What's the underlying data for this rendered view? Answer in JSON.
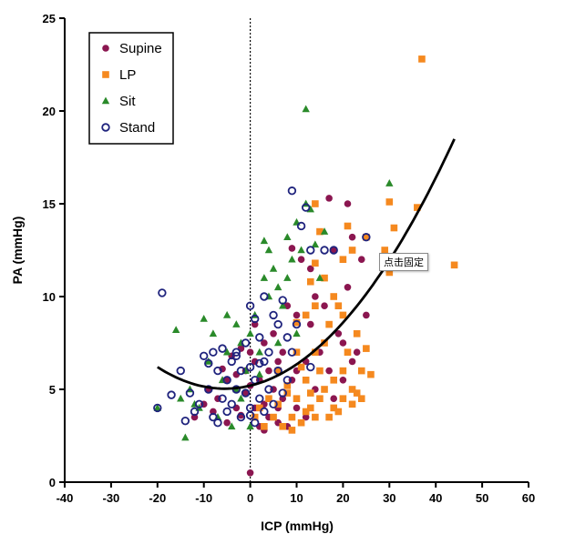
{
  "tooltip": {
    "text": "点击固定"
  },
  "chart_data": {
    "type": "scatter",
    "xlabel": "ICP (mmHg)",
    "ylabel": "PA (mmHg)",
    "xlim": [
      -40,
      60
    ],
    "ylim": [
      0,
      25
    ],
    "x_ticks": [
      -40,
      -30,
      -20,
      -10,
      0,
      10,
      20,
      30,
      40,
      50,
      60
    ],
    "y_ticks": [
      0,
      5,
      10,
      15,
      20,
      25
    ],
    "grid": false,
    "legend_position": "top-left",
    "reference_line": {
      "x": 0,
      "style": "dotted"
    },
    "fit_curve": {
      "type": "quadratic",
      "coefficients": [
        5.2,
        0.06,
        0.0055
      ],
      "x_range": [
        -20,
        44
      ]
    },
    "series": [
      {
        "name": "Supine",
        "marker": "filled-circle",
        "color": "#8B1650",
        "points": [
          [
            -12,
            3.5
          ],
          [
            -10,
            4.2
          ],
          [
            -9,
            5.0
          ],
          [
            -8,
            3.8
          ],
          [
            -7,
            4.5
          ],
          [
            -6,
            6.1
          ],
          [
            -5,
            5.5
          ],
          [
            -5,
            3.2
          ],
          [
            -4,
            6.8
          ],
          [
            -3,
            4.0
          ],
          [
            -3,
            5.8
          ],
          [
            -2,
            7.2
          ],
          [
            -2,
            3.6
          ],
          [
            -1,
            6.0
          ],
          [
            -1,
            4.8
          ],
          [
            0,
            0.5
          ],
          [
            0,
            7.0
          ],
          [
            0,
            5.2
          ],
          [
            1,
            6.5
          ],
          [
            1,
            4.0
          ],
          [
            1,
            8.5
          ],
          [
            2,
            3.0
          ],
          [
            2,
            5.5
          ],
          [
            3,
            7.5
          ],
          [
            3,
            4.2
          ],
          [
            4,
            6.0
          ],
          [
            4,
            3.5
          ],
          [
            5,
            8.0
          ],
          [
            5,
            5.0
          ],
          [
            6,
            3.2
          ],
          [
            6,
            6.5
          ],
          [
            7,
            7.0
          ],
          [
            7,
            4.5
          ],
          [
            8,
            9.5
          ],
          [
            8,
            3.0
          ],
          [
            9,
            5.5
          ],
          [
            10,
            6.0
          ],
          [
            10,
            9.0
          ],
          [
            10,
            4.0
          ],
          [
            11,
            12.0
          ],
          [
            12,
            6.5
          ],
          [
            12,
            3.5
          ],
          [
            13,
            8.5
          ],
          [
            14,
            10.0
          ],
          [
            14,
            5.0
          ],
          [
            15,
            7.0
          ],
          [
            16,
            9.5
          ],
          [
            17,
            6.0
          ],
          [
            18,
            12.5
          ],
          [
            18,
            4.5
          ],
          [
            19,
            8.0
          ],
          [
            20,
            7.5
          ],
          [
            20,
            5.5
          ],
          [
            21,
            10.5
          ],
          [
            22,
            6.5
          ],
          [
            22,
            13.2
          ],
          [
            23,
            7.0
          ],
          [
            24,
            12.0
          ],
          [
            25,
            9.0
          ],
          [
            17,
            15.3
          ],
          [
            21,
            15.0
          ],
          [
            9,
            12.6
          ],
          [
            13,
            11.5
          ],
          [
            3,
            2.8
          ],
          [
            6,
            4.0
          ]
        ]
      },
      {
        "name": "LP",
        "marker": "filled-square",
        "color": "#F5891F",
        "points": [
          [
            37,
            22.8
          ],
          [
            44,
            11.7
          ],
          [
            36,
            14.8
          ],
          [
            30,
            15.1
          ],
          [
            31,
            13.7
          ],
          [
            30,
            11.3
          ],
          [
            29,
            12.5
          ],
          [
            25,
            13.2
          ],
          [
            22,
            12.5
          ],
          [
            21,
            13.8
          ],
          [
            20,
            12.0
          ],
          [
            14,
            15.0
          ],
          [
            15,
            13.5
          ],
          [
            14,
            11.8
          ],
          [
            14,
            9.5
          ],
          [
            13,
            10.8
          ],
          [
            12,
            9.0
          ],
          [
            10,
            8.6
          ],
          [
            10,
            7.0
          ],
          [
            11,
            6.2
          ],
          [
            12,
            5.5
          ],
          [
            13,
            4.0
          ],
          [
            14,
            3.5
          ],
          [
            15,
            6.0
          ],
          [
            16,
            7.5
          ],
          [
            16,
            5.0
          ],
          [
            17,
            8.5
          ],
          [
            18,
            5.5
          ],
          [
            18,
            4.0
          ],
          [
            19,
            9.5
          ],
          [
            20,
            6.0
          ],
          [
            20,
            4.5
          ],
          [
            21,
            7.0
          ],
          [
            22,
            5.0
          ],
          [
            23,
            8.0
          ],
          [
            24,
            6.0
          ],
          [
            25,
            7.2
          ],
          [
            26,
            5.8
          ],
          [
            24,
            4.5
          ],
          [
            23,
            4.8
          ],
          [
            22,
            4.2
          ],
          [
            19,
            3.8
          ],
          [
            17,
            3.5
          ],
          [
            15,
            4.5
          ],
          [
            13,
            4.8
          ],
          [
            12,
            3.8
          ],
          [
            10,
            4.5
          ],
          [
            9,
            3.5
          ],
          [
            8,
            4.8
          ],
          [
            7,
            3.0
          ],
          [
            6,
            4.2
          ],
          [
            5,
            3.5
          ],
          [
            4,
            4.5
          ],
          [
            3,
            3.0
          ],
          [
            2,
            4.0
          ],
          [
            1,
            3.5
          ],
          [
            9,
            2.8
          ],
          [
            11,
            3.2
          ],
          [
            8,
            5.2
          ],
          [
            6,
            6.0
          ],
          [
            16,
            11.0
          ],
          [
            18,
            10.0
          ],
          [
            14,
            7.0
          ],
          [
            20,
            9.0
          ]
        ]
      },
      {
        "name": "Sit",
        "marker": "filled-triangle",
        "color": "#2A8A2A",
        "points": [
          [
            -20,
            4.0
          ],
          [
            -16,
            8.2
          ],
          [
            -15,
            4.5
          ],
          [
            -14,
            2.4
          ],
          [
            -13,
            5.0
          ],
          [
            -12,
            4.2
          ],
          [
            -10,
            8.8
          ],
          [
            -9,
            6.5
          ],
          [
            -8,
            8.0
          ],
          [
            -7,
            3.5
          ],
          [
            -6,
            5.5
          ],
          [
            -5,
            7.0
          ],
          [
            -5,
            9.0
          ],
          [
            -4,
            3.0
          ],
          [
            -3,
            8.5
          ],
          [
            -3,
            5.0
          ],
          [
            -2,
            7.5
          ],
          [
            -1,
            6.0
          ],
          [
            0,
            8.0
          ],
          [
            1,
            9.0
          ],
          [
            2,
            7.0
          ],
          [
            3,
            11.0
          ],
          [
            4,
            10.0
          ],
          [
            4,
            12.5
          ],
          [
            5,
            11.5
          ],
          [
            6,
            10.5
          ],
          [
            7,
            9.5
          ],
          [
            8,
            13.2
          ],
          [
            8,
            11.0
          ],
          [
            9,
            12.0
          ],
          [
            10,
            14.0
          ],
          [
            11,
            12.5
          ],
          [
            12,
            15.0
          ],
          [
            12,
            20.1
          ],
          [
            13,
            14.7
          ],
          [
            14,
            12.8
          ],
          [
            15,
            11.0
          ],
          [
            16,
            13.5
          ],
          [
            30,
            16.1
          ],
          [
            3,
            13.0
          ],
          [
            -11,
            4.0
          ],
          [
            -2,
            4.5
          ],
          [
            0,
            3.0
          ],
          [
            2,
            5.8
          ],
          [
            10,
            8.0
          ],
          [
            6,
            7.5
          ]
        ]
      },
      {
        "name": "Stand",
        "marker": "open-circle",
        "color": "#1F237D",
        "points": [
          [
            -19,
            10.2
          ],
          [
            -20,
            4.0
          ],
          [
            -15,
            6.0
          ],
          [
            -14,
            3.3
          ],
          [
            -13,
            4.8
          ],
          [
            -12,
            3.8
          ],
          [
            -11,
            4.2
          ],
          [
            -10,
            6.8
          ],
          [
            -9,
            5.0
          ],
          [
            -8,
            7.0
          ],
          [
            -8,
            3.5
          ],
          [
            -7,
            6.0
          ],
          [
            -6,
            4.5
          ],
          [
            -6,
            7.2
          ],
          [
            -5,
            5.5
          ],
          [
            -5,
            3.8
          ],
          [
            -4,
            6.5
          ],
          [
            -4,
            4.2
          ],
          [
            -3,
            7.0
          ],
          [
            -3,
            5.0
          ],
          [
            -2,
            6.0
          ],
          [
            -2,
            3.5
          ],
          [
            -1,
            4.8
          ],
          [
            -1,
            7.5
          ],
          [
            0,
            9.5
          ],
          [
            0,
            6.2
          ],
          [
            0,
            4.0
          ],
          [
            1,
            8.8
          ],
          [
            1,
            5.5
          ],
          [
            1,
            3.2
          ],
          [
            2,
            7.8
          ],
          [
            2,
            4.5
          ],
          [
            3,
            10.0
          ],
          [
            3,
            6.5
          ],
          [
            3,
            3.8
          ],
          [
            4,
            7.0
          ],
          [
            4,
            5.0
          ],
          [
            5,
            9.0
          ],
          [
            5,
            4.2
          ],
          [
            6,
            8.5
          ],
          [
            6,
            6.0
          ],
          [
            7,
            9.8
          ],
          [
            7,
            4.8
          ],
          [
            8,
            7.8
          ],
          [
            8,
            5.5
          ],
          [
            9,
            15.7
          ],
          [
            9,
            7.0
          ],
          [
            10,
            8.5
          ],
          [
            11,
            13.8
          ],
          [
            12,
            14.8
          ],
          [
            13,
            12.5
          ],
          [
            13,
            6.2
          ],
          [
            16,
            12.5
          ],
          [
            18,
            12.5
          ],
          [
            25,
            13.2
          ],
          [
            -17,
            4.7
          ],
          [
            -9,
            6.4
          ],
          [
            -7,
            3.2
          ],
          [
            -3,
            6.8
          ],
          [
            0,
            3.6
          ],
          [
            2,
            6.4
          ]
        ]
      }
    ]
  }
}
